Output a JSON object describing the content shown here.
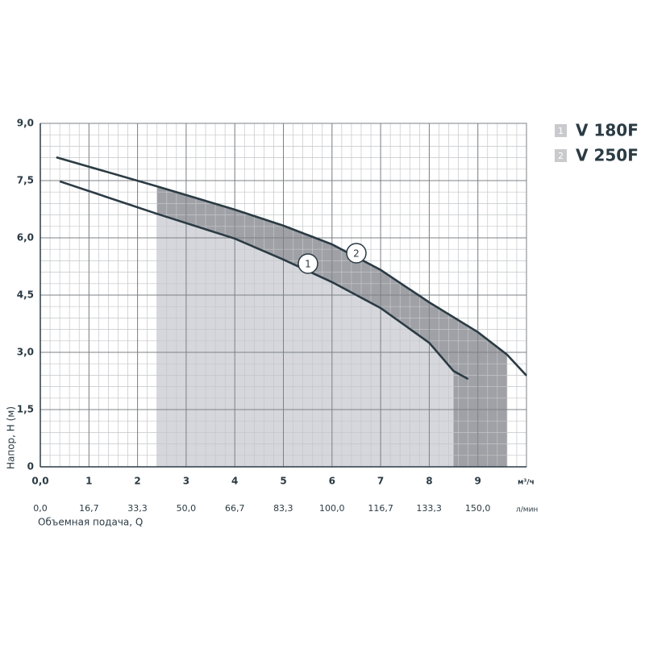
{
  "chart_data": {
    "type": "line",
    "ylabel": "Напор, Н (м)",
    "xlabel": "Объемная подача, Q",
    "xunit": "м³/ч",
    "x2unit": "л/мин",
    "xlim": [
      0,
      10
    ],
    "xticks": [
      {
        "value": 0,
        "label": "0,0"
      },
      1,
      2,
      3,
      4,
      5,
      6,
      7,
      8,
      9
    ],
    "x2lim": [
      0,
      166.7
    ],
    "x2ticks": [
      {
        "value": 0,
        "label": "0,0"
      },
      {
        "value": 16.7,
        "label": "16,7"
      },
      {
        "value": 33.3,
        "label": "33,3"
      },
      {
        "value": 50,
        "label": "50,0"
      },
      {
        "value": 66.7,
        "label": "66,7"
      },
      {
        "value": 83.3,
        "label": "83,3"
      },
      {
        "value": 100,
        "label": "100,0"
      },
      {
        "value": 116.7,
        "label": "116,7"
      },
      {
        "value": 133.3,
        "label": "133,3"
      },
      {
        "value": 150,
        "label": "150,0"
      }
    ],
    "ylim": [
      0,
      9
    ],
    "yticks": [
      0,
      {
        "value": 1.5,
        "label": "1,5"
      },
      {
        "value": 3,
        "label": "3,0"
      },
      {
        "value": 4.5,
        "label": "4,5"
      },
      {
        "value": 6,
        "label": "6,0"
      },
      {
        "value": 7.5,
        "label": "7,5"
      },
      {
        "value": 9,
        "label": "9,0"
      }
    ],
    "grid": true,
    "series": [
      {
        "name": "V 180F",
        "number": "1",
        "color": "#2b3b44",
        "shade": "#d5d7dc",
        "range": [
          2.4,
          8.5
        ],
        "x": [
          0.4,
          2.4,
          4,
          5,
          6,
          7,
          8,
          8.5,
          8.8
        ],
        "values": [
          7.48,
          6.63,
          5.98,
          5.43,
          4.84,
          4.16,
          3.25,
          2.51,
          2.3
        ]
      },
      {
        "name": "V 250F",
        "number": "2",
        "color": "#2b3b44",
        "shade": "#9fa1a6",
        "range": [
          2.4,
          9.6
        ],
        "x": [
          0.33,
          2.4,
          4,
          5,
          6,
          7,
          8,
          9,
          9.6,
          10
        ],
        "values": [
          8.11,
          7.35,
          6.74,
          6.32,
          5.83,
          5.16,
          4.31,
          3.53,
          2.94,
          2.39
        ]
      }
    ]
  }
}
